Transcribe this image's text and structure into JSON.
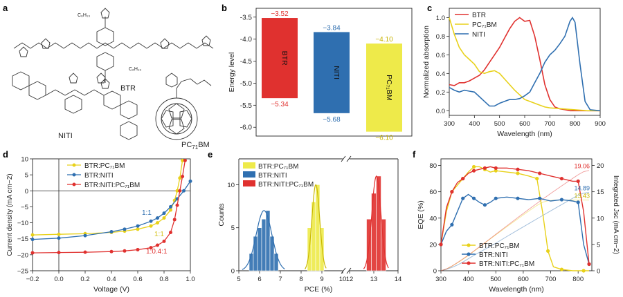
{
  "panel_letters": {
    "a": "a",
    "b": "b",
    "c": "c",
    "d": "d",
    "e": "e",
    "f": "f"
  },
  "molecules": {
    "btr": "BTR",
    "niti": "NITI",
    "pcbm": "PC",
    "pcbm_sub": "71",
    "pcbm_end": "BM",
    "btr_sub": "C₆H₁₃",
    "btr_sub2": "C₆H₁₃"
  },
  "colors": {
    "btr": "#e0312f",
    "niti": "#2f6fb0",
    "pcbm": "#eeea4a",
    "pcbm_line": "#e8d11a"
  },
  "chart_data": [
    {
      "panel": "b",
      "type": "bar",
      "categories": [
        "BTR",
        "NITI",
        "PC71BM"
      ],
      "ylabel": "Energy level",
      "ylim": [
        -6.2,
        -3.3
      ],
      "yticks": [
        "-3.5",
        "-4.0",
        "-4.5",
        "-5.0",
        "-5.5",
        "-6.0"
      ],
      "lumo": [
        -3.52,
        -3.84,
        -4.1
      ],
      "homo": [
        -5.34,
        -5.68,
        -6.1
      ],
      "lumo_labels": [
        "−3.52",
        "−3.84",
        "−4.10"
      ],
      "homo_labels": [
        "−5.34",
        "−5.68",
        "−6.10"
      ]
    },
    {
      "panel": "c",
      "type": "line",
      "xlabel": "Wavelength (nm)",
      "ylabel": "Normalized absorption",
      "xlim": [
        300,
        900
      ],
      "ylim": [
        -0.05,
        1.1
      ],
      "xticks": [
        "300",
        "400",
        "500",
        "600",
        "700",
        "800",
        "900"
      ],
      "yticks": [
        "0.0",
        "0.2",
        "0.4",
        "0.6",
        "0.8",
        "1.0"
      ],
      "legend": [
        "BTR",
        "PC71BM",
        "NITI"
      ],
      "series": [
        {
          "name": "BTR",
          "x": [
            300,
            320,
            340,
            360,
            380,
            400,
            420,
            440,
            460,
            480,
            500,
            520,
            540,
            560,
            580,
            600,
            620,
            640,
            660,
            680,
            700,
            720,
            740,
            760,
            780,
            800,
            850,
            900
          ],
          "y": [
            0.28,
            0.27,
            0.3,
            0.3,
            0.32,
            0.35,
            0.38,
            0.44,
            0.52,
            0.6,
            0.68,
            0.78,
            0.88,
            0.96,
            1.0,
            0.96,
            0.97,
            0.8,
            0.55,
            0.28,
            0.12,
            0.04,
            0.02,
            0.01,
            0.0,
            0.0,
            0.0,
            0.0
          ]
        },
        {
          "name": "PC71BM",
          "x": [
            300,
            320,
            340,
            360,
            380,
            400,
            420,
            440,
            460,
            480,
            500,
            520,
            540,
            560,
            580,
            600,
            620,
            640,
            660,
            680,
            700,
            750,
            800,
            850,
            900
          ],
          "y": [
            1.0,
            0.82,
            0.68,
            0.6,
            0.55,
            0.5,
            0.42,
            0.4,
            0.42,
            0.43,
            0.4,
            0.34,
            0.28,
            0.22,
            0.17,
            0.12,
            0.1,
            0.08,
            0.06,
            0.04,
            0.03,
            0.02,
            0.01,
            0.0,
            0.0
          ]
        },
        {
          "name": "NITI",
          "x": [
            300,
            320,
            340,
            360,
            380,
            400,
            420,
            440,
            460,
            480,
            500,
            520,
            540,
            560,
            580,
            600,
            620,
            640,
            660,
            680,
            700,
            720,
            740,
            760,
            780,
            790,
            800,
            820,
            840,
            860,
            900
          ],
          "y": [
            0.25,
            0.22,
            0.2,
            0.22,
            0.21,
            0.2,
            0.15,
            0.1,
            0.05,
            0.05,
            0.08,
            0.1,
            0.12,
            0.12,
            0.13,
            0.16,
            0.2,
            0.3,
            0.4,
            0.52,
            0.6,
            0.65,
            0.72,
            0.8,
            0.96,
            1.0,
            0.95,
            0.5,
            0.1,
            0.01,
            0.0
          ]
        }
      ]
    },
    {
      "panel": "d",
      "type": "line",
      "xlabel": "Voltage (V)",
      "ylabel": "Current density (mA cm−2)",
      "xlim": [
        -0.2,
        1.0
      ],
      "ylim": [
        -25,
        10
      ],
      "xticks": [
        "−0.2",
        "0.0",
        "0.2",
        "0.4",
        "0.6",
        "0.8",
        "1.0"
      ],
      "yticks": [
        "10",
        "5",
        "0",
        "−5",
        "−10",
        "−15",
        "−20",
        "−25"
      ],
      "legend": [
        "BTR:PC71BM",
        "BTR:NITI",
        "BTR:NITI:PC71BM"
      ],
      "annotations": [
        "1:1",
        "1:1",
        "1:0.4:1"
      ],
      "series": [
        {
          "name": "BTR:PC71BM",
          "x": [
            -0.2,
            0.0,
            0.2,
            0.4,
            0.5,
            0.6,
            0.7,
            0.75,
            0.8,
            0.85,
            0.88,
            0.9,
            0.92,
            0.94
          ],
          "y": [
            -13.8,
            -13.6,
            -13.4,
            -13.0,
            -12.6,
            -12.0,
            -11.0,
            -10.0,
            -8.5,
            -6.0,
            -3.0,
            0.0,
            4.0,
            9.5
          ]
        },
        {
          "name": "BTR:NITI",
          "x": [
            -0.2,
            0.0,
            0.2,
            0.4,
            0.5,
            0.6,
            0.7,
            0.75,
            0.8,
            0.85,
            0.9,
            0.95,
            1.0
          ],
          "y": [
            -15.2,
            -14.8,
            -14.0,
            -12.8,
            -12.0,
            -11.0,
            -9.5,
            -8.5,
            -7.0,
            -5.0,
            -2.5,
            0.0,
            3.0
          ]
        },
        {
          "name": "BTR:NITI:PC71BM",
          "x": [
            -0.2,
            0.0,
            0.2,
            0.4,
            0.5,
            0.6,
            0.7,
            0.75,
            0.8,
            0.85,
            0.88,
            0.9,
            0.92,
            0.94,
            0.96
          ],
          "y": [
            -19.4,
            -19.3,
            -19.2,
            -19.0,
            -18.8,
            -18.4,
            -17.8,
            -17.0,
            -15.8,
            -13.0,
            -9.0,
            -4.5,
            0.0,
            4.5,
            9.5
          ]
        }
      ]
    },
    {
      "panel": "e",
      "type": "bar",
      "xlabel": "PCE (%)",
      "ylabel": "Counts",
      "ylim": [
        0,
        13
      ],
      "xticks": [
        "5",
        "6",
        "7",
        "8",
        "9",
        "10",
        "12",
        "13",
        "14"
      ],
      "yticks": [
        "0",
        "5",
        "10"
      ],
      "legend": [
        "BTR:PC71BM",
        "BTR:NITI",
        "BTR:NITI:PC71BM"
      ],
      "series": [
        {
          "name": "BTR:NITI",
          "x": [
            5.6,
            5.8,
            6.0,
            6.2,
            6.4,
            6.6,
            6.8
          ],
          "values": [
            2,
            4,
            5,
            6,
            7,
            4,
            2
          ]
        },
        {
          "name": "BTR:PC71BM",
          "x": [
            8.4,
            8.6,
            8.8,
            9.0
          ],
          "values": [
            5,
            8,
            10,
            5
          ]
        },
        {
          "name": "BTR:NITI:PC71BM",
          "x": [
            12.8,
            13.0,
            13.2,
            13.4
          ],
          "values": [
            6,
            9,
            11,
            6
          ]
        }
      ]
    },
    {
      "panel": "f",
      "type": "line",
      "xlabel": "Wavelength (nm)",
      "ylabel": "EQE (%)",
      "y2label": "Integrated Jsc (mA cm−2)",
      "xlim": [
        300,
        850
      ],
      "ylim": [
        0,
        85
      ],
      "y2lim": [
        0,
        21.25
      ],
      "xticks": [
        "300",
        "400",
        "500",
        "600",
        "700",
        "800"
      ],
      "yticks": [
        "0",
        "20",
        "40",
        "60",
        "80"
      ],
      "y2ticks": [
        "0",
        "5",
        "10",
        "15",
        "20"
      ],
      "legend": [
        "BTR:PC71BM",
        "BTR:NITI",
        "BTR:NITI:PC71BM"
      ],
      "integrated_labels": [
        "19.06",
        "14.89",
        "13.43"
      ],
      "series": [
        {
          "name": "BTR:PC71BM",
          "x": [
            300,
            320,
            340,
            360,
            380,
            400,
            420,
            440,
            460,
            480,
            500,
            540,
            580,
            620,
            650,
            670,
            690,
            710,
            740,
            780,
            820,
            840
          ],
          "y": [
            20,
            45,
            60,
            65,
            70,
            75,
            79,
            79,
            77,
            75,
            76,
            75,
            74,
            72,
            70,
            45,
            15,
            3,
            1,
            0,
            0,
            0
          ]
        },
        {
          "name": "BTR:NITI",
          "x": [
            300,
            320,
            340,
            360,
            380,
            400,
            420,
            440,
            460,
            480,
            500,
            540,
            580,
            620,
            660,
            700,
            740,
            780,
            800,
            820,
            840
          ],
          "y": [
            20,
            30,
            35,
            45,
            55,
            58,
            55,
            52,
            50,
            52,
            55,
            56,
            55,
            54,
            55,
            53,
            54,
            53,
            52,
            20,
            5
          ]
        },
        {
          "name": "BTR:NITI:PC71BM",
          "x": [
            300,
            320,
            340,
            360,
            380,
            400,
            420,
            440,
            460,
            480,
            500,
            540,
            580,
            620,
            660,
            700,
            740,
            780,
            800,
            820,
            840
          ],
          "y": [
            20,
            48,
            60,
            67,
            70,
            74,
            76,
            77,
            78,
            79,
            78,
            78,
            77,
            76,
            74,
            72,
            70,
            68,
            68,
            45,
            5
          ]
        }
      ]
    }
  ]
}
